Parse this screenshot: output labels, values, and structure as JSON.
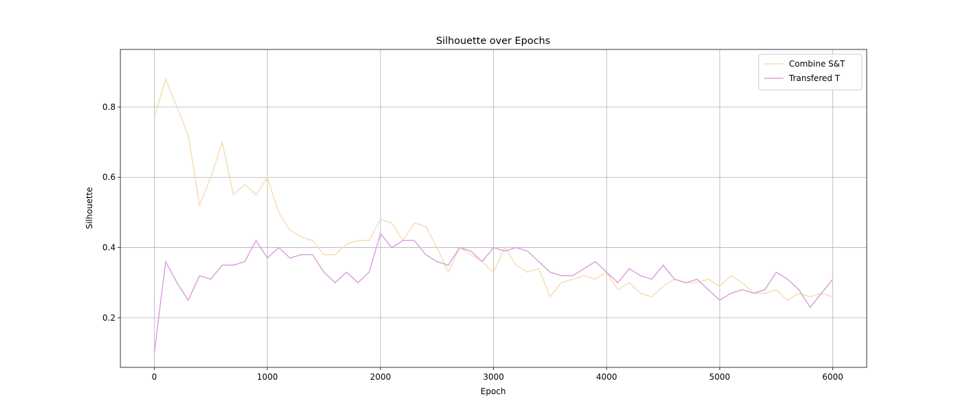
{
  "chart_data": {
    "type": "line",
    "title": "Silhouette over Epochs",
    "xlabel": "Epoch",
    "ylabel": "Silhouette",
    "x": [
      0,
      100,
      200,
      300,
      400,
      500,
      600,
      700,
      800,
      900,
      1000,
      1100,
      1200,
      1300,
      1400,
      1500,
      1600,
      1700,
      1800,
      1900,
      2000,
      2100,
      2200,
      2300,
      2400,
      2500,
      2600,
      2700,
      2800,
      2900,
      3000,
      3100,
      3200,
      3300,
      3400,
      3500,
      3600,
      3700,
      3800,
      3900,
      4000,
      4100,
      4200,
      4300,
      4400,
      4500,
      4600,
      4700,
      4800,
      4900,
      5000,
      5100,
      5200,
      5300,
      5400,
      5500,
      5600,
      5700,
      5800,
      5900,
      6000
    ],
    "series": [
      {
        "name": "Combine S&T",
        "color": "#f5deb3",
        "values": [
          0.77,
          0.88,
          0.8,
          0.72,
          0.52,
          0.6,
          0.7,
          0.55,
          0.58,
          0.55,
          0.6,
          0.5,
          0.45,
          0.43,
          0.42,
          0.38,
          0.38,
          0.41,
          0.42,
          0.42,
          0.48,
          0.47,
          0.42,
          0.47,
          0.46,
          0.4,
          0.33,
          0.4,
          0.38,
          0.36,
          0.33,
          0.4,
          0.35,
          0.33,
          0.34,
          0.26,
          0.3,
          0.31,
          0.32,
          0.31,
          0.33,
          0.28,
          0.3,
          0.27,
          0.26,
          0.29,
          0.31,
          0.3,
          0.3,
          0.31,
          0.29,
          0.32,
          0.3,
          0.27,
          0.27,
          0.28,
          0.25,
          0.27,
          0.26,
          0.27,
          0.26
        ]
      },
      {
        "name": "Transfered T",
        "color": "#dda0dd",
        "values": [
          0.1,
          0.36,
          0.3,
          0.25,
          0.32,
          0.31,
          0.35,
          0.35,
          0.36,
          0.42,
          0.37,
          0.4,
          0.37,
          0.38,
          0.38,
          0.33,
          0.3,
          0.33,
          0.3,
          0.33,
          0.44,
          0.4,
          0.42,
          0.42,
          0.38,
          0.36,
          0.35,
          0.4,
          0.39,
          0.36,
          0.4,
          0.39,
          0.4,
          0.39,
          0.36,
          0.33,
          0.32,
          0.32,
          0.34,
          0.36,
          0.33,
          0.3,
          0.34,
          0.32,
          0.31,
          0.35,
          0.31,
          0.3,
          0.31,
          0.28,
          0.25,
          0.27,
          0.28,
          0.27,
          0.28,
          0.33,
          0.31,
          0.28,
          0.23,
          0.27,
          0.31
        ]
      }
    ],
    "xlim": [
      -300,
      6300
    ],
    "ylim": [
      0.059,
      0.964
    ],
    "xticks": [
      0,
      1000,
      2000,
      3000,
      4000,
      5000,
      6000
    ],
    "yticks": [
      0.2,
      0.4,
      0.6,
      0.8
    ],
    "grid": true,
    "legend": "upper right"
  }
}
